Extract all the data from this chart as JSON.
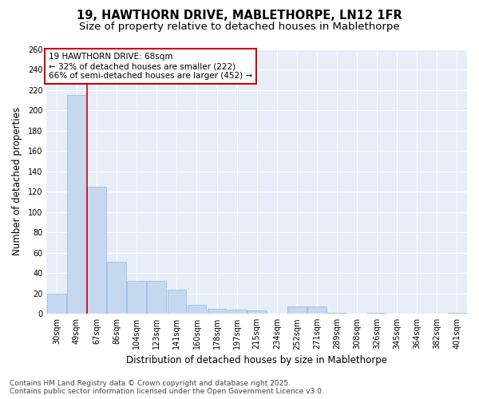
{
  "title": "19, HAWTHORN DRIVE, MABLETHORPE, LN12 1FR",
  "subtitle": "Size of property relative to detached houses in Mablethorpe",
  "xlabel": "Distribution of detached houses by size in Mablethorpe",
  "ylabel": "Number of detached properties",
  "categories": [
    "30sqm",
    "49sqm",
    "67sqm",
    "86sqm",
    "104sqm",
    "123sqm",
    "141sqm",
    "160sqm",
    "178sqm",
    "197sqm",
    "215sqm",
    "234sqm",
    "252sqm",
    "271sqm",
    "289sqm",
    "308sqm",
    "326sqm",
    "345sqm",
    "364sqm",
    "382sqm",
    "401sqm"
  ],
  "values": [
    20,
    215,
    125,
    51,
    32,
    32,
    24,
    9,
    5,
    4,
    3,
    0,
    7,
    7,
    1,
    0,
    1,
    0,
    0,
    0,
    1
  ],
  "bar_color": "#c5d8f0",
  "bar_edge_color": "#8fb8e0",
  "highlight_index": 2,
  "highlight_line_color": "#cc0000",
  "property_label": "19 HAWTHORN DRIVE: 68sqm",
  "annotation_line1": "← 32% of detached houses are smaller (222)",
  "annotation_line2": "66% of semi-detached houses are larger (452) →",
  "annotation_box_facecolor": "#ffffff",
  "annotation_box_edgecolor": "#cc0000",
  "ylim": [
    0,
    260
  ],
  "yticks": [
    0,
    20,
    40,
    60,
    80,
    100,
    120,
    140,
    160,
    180,
    200,
    220,
    240,
    260
  ],
  "fig_facecolor": "#ffffff",
  "ax_facecolor": "#e8eef8",
  "grid_color": "#ffffff",
  "footer_line1": "Contains HM Land Registry data © Crown copyright and database right 2025.",
  "footer_line2": "Contains public sector information licensed under the Open Government Licence v3.0.",
  "title_fontsize": 10.5,
  "subtitle_fontsize": 9.5,
  "xlabel_fontsize": 8.5,
  "ylabel_fontsize": 8.5,
  "tick_fontsize": 7,
  "annotation_fontsize": 7.5,
  "footer_fontsize": 6.5
}
